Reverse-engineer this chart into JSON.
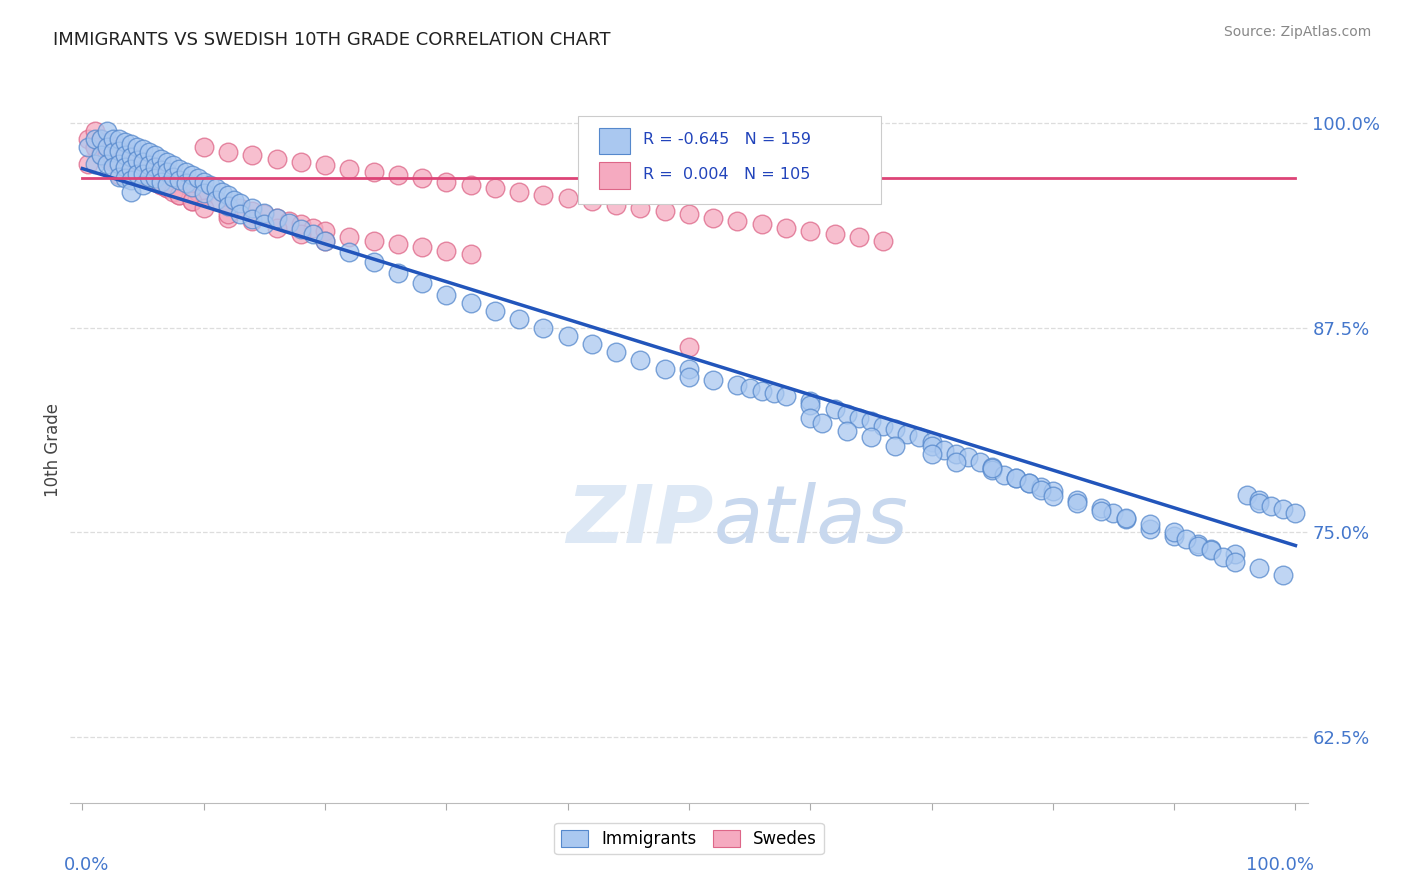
{
  "title": "IMMIGRANTS VS SWEDISH 10TH GRADE CORRELATION CHART",
  "source_text": "Source: ZipAtlas.com",
  "ylabel": "10th Grade",
  "right_yticks": [
    0.625,
    0.75,
    0.875,
    1.0
  ],
  "right_yticklabels": [
    "62.5%",
    "75.0%",
    "87.5%",
    "100.0%"
  ],
  "blue_color": "#aac8f0",
  "blue_edge_color": "#5588cc",
  "blue_line_color": "#2255bb",
  "pink_color": "#f5aac0",
  "pink_edge_color": "#dd6688",
  "pink_line_color": "#dd4477",
  "grid_color": "#dddddd",
  "background_color": "#ffffff",
  "blue_line": {
    "x0": 0.0,
    "y0": 0.972,
    "x1": 1.0,
    "y1": 0.742
  },
  "pink_line": {
    "x0": 0.0,
    "y0": 0.966,
    "x1": 1.0,
    "y1": 0.966
  },
  "ylim": [
    0.585,
    1.015
  ],
  "xlim": [
    -0.01,
    1.01
  ],
  "blue_scatter_x": [
    0.005,
    0.01,
    0.01,
    0.015,
    0.015,
    0.02,
    0.02,
    0.02,
    0.025,
    0.025,
    0.025,
    0.03,
    0.03,
    0.03,
    0.03,
    0.035,
    0.035,
    0.035,
    0.035,
    0.04,
    0.04,
    0.04,
    0.04,
    0.04,
    0.045,
    0.045,
    0.045,
    0.05,
    0.05,
    0.05,
    0.05,
    0.055,
    0.055,
    0.055,
    0.06,
    0.06,
    0.06,
    0.065,
    0.065,
    0.065,
    0.07,
    0.07,
    0.07,
    0.075,
    0.075,
    0.08,
    0.08,
    0.085,
    0.085,
    0.09,
    0.09,
    0.095,
    0.1,
    0.1,
    0.105,
    0.11,
    0.11,
    0.115,
    0.12,
    0.12,
    0.125,
    0.13,
    0.13,
    0.14,
    0.14,
    0.15,
    0.15,
    0.16,
    0.17,
    0.18,
    0.19,
    0.2,
    0.22,
    0.24,
    0.26,
    0.28,
    0.3,
    0.32,
    0.34,
    0.36,
    0.38,
    0.4,
    0.42,
    0.44,
    0.46,
    0.48,
    0.5,
    0.5,
    0.52,
    0.54,
    0.55,
    0.56,
    0.57,
    0.58,
    0.6,
    0.6,
    0.62,
    0.63,
    0.64,
    0.65,
    0.66,
    0.67,
    0.68,
    0.69,
    0.7,
    0.7,
    0.71,
    0.72,
    0.73,
    0.74,
    0.75,
    0.75,
    0.76,
    0.77,
    0.78,
    0.79,
    0.8,
    0.82,
    0.84,
    0.85,
    0.86,
    0.88,
    0.9,
    0.92,
    0.93,
    0.95,
    0.96,
    0.97,
    0.97,
    0.98,
    0.99,
    1.0,
    0.6,
    0.61,
    0.63,
    0.65,
    0.67,
    0.7,
    0.72,
    0.75,
    0.77,
    0.78,
    0.79,
    0.8,
    0.82,
    0.84,
    0.86,
    0.88,
    0.9,
    0.91,
    0.92,
    0.93,
    0.94,
    0.95,
    0.97,
    0.99
  ],
  "blue_scatter_y": [
    0.985,
    0.99,
    0.975,
    0.99,
    0.98,
    0.995,
    0.985,
    0.975,
    0.99,
    0.982,
    0.973,
    0.99,
    0.983,
    0.975,
    0.967,
    0.988,
    0.98,
    0.973,
    0.966,
    0.987,
    0.979,
    0.972,
    0.965,
    0.958,
    0.985,
    0.977,
    0.969,
    0.984,
    0.976,
    0.969,
    0.962,
    0.982,
    0.974,
    0.967,
    0.98,
    0.973,
    0.966,
    0.978,
    0.971,
    0.964,
    0.976,
    0.97,
    0.962,
    0.974,
    0.967,
    0.972,
    0.965,
    0.97,
    0.963,
    0.968,
    0.961,
    0.966,
    0.964,
    0.957,
    0.962,
    0.96,
    0.953,
    0.958,
    0.956,
    0.949,
    0.953,
    0.951,
    0.944,
    0.948,
    0.941,
    0.945,
    0.938,
    0.942,
    0.939,
    0.935,
    0.932,
    0.928,
    0.921,
    0.915,
    0.908,
    0.902,
    0.895,
    0.89,
    0.885,
    0.88,
    0.875,
    0.87,
    0.865,
    0.86,
    0.855,
    0.85,
    0.85,
    0.845,
    0.843,
    0.84,
    0.838,
    0.836,
    0.835,
    0.833,
    0.83,
    0.828,
    0.825,
    0.822,
    0.82,
    0.818,
    0.815,
    0.813,
    0.81,
    0.808,
    0.805,
    0.803,
    0.8,
    0.798,
    0.796,
    0.793,
    0.79,
    0.788,
    0.785,
    0.783,
    0.78,
    0.778,
    0.775,
    0.77,
    0.765,
    0.762,
    0.758,
    0.752,
    0.748,
    0.743,
    0.74,
    0.737,
    0.773,
    0.77,
    0.768,
    0.766,
    0.764,
    0.762,
    0.82,
    0.817,
    0.812,
    0.808,
    0.803,
    0.798,
    0.793,
    0.789,
    0.783,
    0.78,
    0.776,
    0.772,
    0.768,
    0.763,
    0.759,
    0.755,
    0.75,
    0.746,
    0.742,
    0.739,
    0.735,
    0.732,
    0.728,
    0.724
  ],
  "pink_scatter_x": [
    0.005,
    0.01,
    0.01,
    0.015,
    0.015,
    0.02,
    0.02,
    0.025,
    0.025,
    0.03,
    0.03,
    0.03,
    0.035,
    0.035,
    0.04,
    0.04,
    0.045,
    0.045,
    0.05,
    0.05,
    0.055,
    0.055,
    0.06,
    0.06,
    0.065,
    0.065,
    0.07,
    0.07,
    0.075,
    0.08,
    0.08,
    0.085,
    0.09,
    0.09,
    0.095,
    0.1,
    0.11,
    0.12,
    0.12,
    0.13,
    0.14,
    0.15,
    0.16,
    0.17,
    0.18,
    0.19,
    0.2,
    0.22,
    0.24,
    0.26,
    0.28,
    0.3,
    0.32,
    0.005,
    0.01,
    0.015,
    0.02,
    0.025,
    0.03,
    0.035,
    0.04,
    0.045,
    0.05,
    0.055,
    0.06,
    0.065,
    0.07,
    0.075,
    0.08,
    0.09,
    0.1,
    0.12,
    0.14,
    0.16,
    0.18,
    0.2,
    0.1,
    0.12,
    0.14,
    0.16,
    0.18,
    0.2,
    0.22,
    0.24,
    0.26,
    0.28,
    0.3,
    0.32,
    0.34,
    0.36,
    0.38,
    0.4,
    0.42,
    0.44,
    0.46,
    0.48,
    0.5,
    0.52,
    0.54,
    0.56,
    0.58,
    0.6,
    0.62,
    0.64,
    0.66,
    0.5
  ],
  "pink_scatter_y": [
    0.99,
    0.995,
    0.985,
    0.99,
    0.98,
    0.988,
    0.978,
    0.986,
    0.976,
    0.984,
    0.976,
    0.968,
    0.982,
    0.974,
    0.98,
    0.972,
    0.978,
    0.97,
    0.976,
    0.968,
    0.974,
    0.966,
    0.972,
    0.964,
    0.97,
    0.962,
    0.968,
    0.96,
    0.966,
    0.964,
    0.956,
    0.962,
    0.96,
    0.952,
    0.958,
    0.956,
    0.952,
    0.95,
    0.942,
    0.948,
    0.946,
    0.944,
    0.942,
    0.94,
    0.938,
    0.936,
    0.934,
    0.93,
    0.928,
    0.926,
    0.924,
    0.922,
    0.92,
    0.975,
    0.985,
    0.982,
    0.98,
    0.978,
    0.976,
    0.974,
    0.972,
    0.97,
    0.968,
    0.966,
    0.964,
    0.962,
    0.96,
    0.958,
    0.956,
    0.952,
    0.948,
    0.944,
    0.94,
    0.936,
    0.932,
    0.928,
    0.985,
    0.982,
    0.98,
    0.978,
    0.976,
    0.974,
    0.972,
    0.97,
    0.968,
    0.966,
    0.964,
    0.962,
    0.96,
    0.958,
    0.956,
    0.954,
    0.952,
    0.95,
    0.948,
    0.946,
    0.944,
    0.942,
    0.94,
    0.938,
    0.936,
    0.934,
    0.932,
    0.93,
    0.928,
    0.863
  ]
}
